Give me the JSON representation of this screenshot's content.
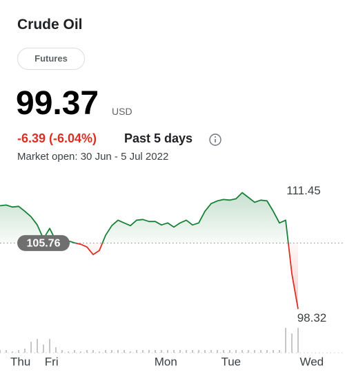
{
  "header": {
    "title": "Crude Oil",
    "tag": "Futures",
    "price": "99.37",
    "currency": "USD",
    "change": "-6.39 (-6.04%)",
    "period": "Past 5 days",
    "market_status": "Market open: 30 Jun - 5 Jul 2022"
  },
  "chart_data": {
    "type": "line",
    "series": [
      {
        "color": "#188038",
        "down_color": "#d93025",
        "values": [
          109.97,
          110.05,
          109.82,
          109.9,
          109.35,
          108.73,
          107.8,
          106.24,
          107.41,
          106.01,
          105.93,
          106.01,
          105.78,
          105.62,
          105.31,
          104.46,
          104.92,
          106.63,
          107.72,
          108.34,
          108.03,
          107.72,
          108.34,
          108.42,
          108.19,
          108.19,
          107.8,
          108.03,
          107.56,
          108.03,
          108.34,
          107.8,
          108.03,
          109.35,
          110.21,
          110.52,
          110.67,
          110.6,
          110.75,
          111.45,
          110.91,
          110.36,
          110.6,
          110.52,
          109.35,
          108.03,
          108.34,
          102.28,
          98.32
        ]
      }
    ],
    "volume": [
      1,
      1,
      0.5,
      1,
      1.5,
      4,
      5,
      3,
      5,
      2,
      1,
      0.5,
      1,
      0.5,
      1,
      1,
      0.5,
      1,
      1,
      1,
      1,
      0.5,
      1,
      1,
      1,
      1,
      1,
      1,
      1,
      1,
      1,
      1,
      1,
      1,
      1,
      1,
      1,
      1,
      1,
      1,
      1,
      1,
      1,
      1,
      1,
      1,
      9,
      7,
      9
    ],
    "volume_ylim": [
      0,
      10
    ],
    "previous_close": 105.76,
    "high": 111.45,
    "low": 98.32,
    "xlim": [
      0,
      54
    ],
    "ylim": [
      96.5,
      112.5
    ],
    "xticks": [
      {
        "value": 3.3,
        "label": "Thu"
      },
      {
        "value": 8.3,
        "label": "Fri"
      },
      {
        "value": 26.7,
        "label": "Mon"
      },
      {
        "value": 37.2,
        "label": "Tue"
      },
      {
        "value": 50.2,
        "label": "Wed"
      }
    ]
  }
}
